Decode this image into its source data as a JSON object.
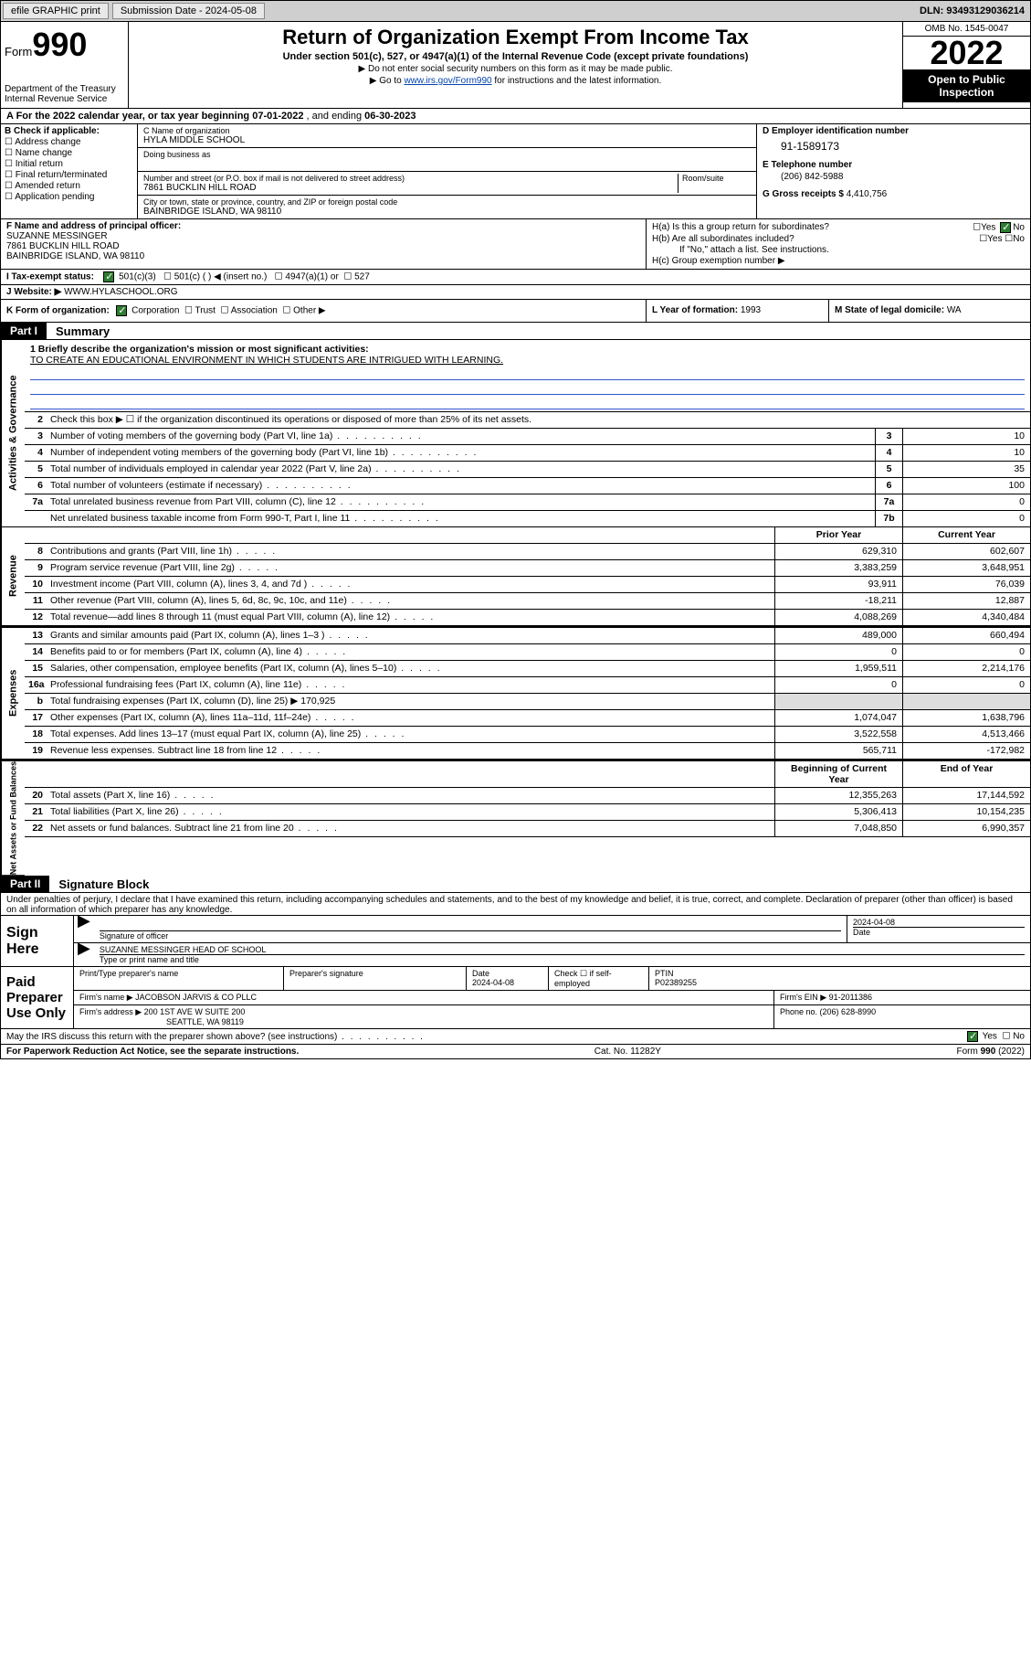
{
  "topbar": {
    "efile": "efile GRAPHIC print",
    "subdate_label": "Submission Date - ",
    "subdate": "2024-05-08",
    "dln_label": "DLN: ",
    "dln": "93493129036214"
  },
  "header": {
    "form_prefix": "Form",
    "form_no": "990",
    "dept": "Department of the Treasury",
    "irs": "Internal Revenue Service",
    "title": "Return of Organization Exempt From Income Tax",
    "sub": "Under section 501(c), 527, or 4947(a)(1) of the Internal Revenue Code (except private foundations)",
    "note1": "▶ Do not enter social security numbers on this form as it may be made public.",
    "note2_a": "▶ Go to ",
    "note2_link": "www.irs.gov/Form990",
    "note2_b": " for instructions and the latest information.",
    "omb": "OMB No. 1545-0047",
    "year": "2022",
    "openpub": "Open to Public Inspection"
  },
  "rowA": {
    "text_a": "A For the 2022 calendar year, or tax year beginning ",
    "begin": "07-01-2022",
    "text_b": " , and ending ",
    "end": "06-30-2023"
  },
  "colB": {
    "label": "B Check if applicable:",
    "opts": [
      "Address change",
      "Name change",
      "Initial return",
      "Final return/terminated",
      "Amended return",
      "Application pending"
    ]
  },
  "colC": {
    "name_cap": "C Name of organization",
    "name": "HYLA MIDDLE SCHOOL",
    "dba_cap": "Doing business as",
    "addr_cap": "Number and street (or P.O. box if mail is not delivered to street address)",
    "room_cap": "Room/suite",
    "addr": "7861 BUCKLIN HILL ROAD",
    "city_cap": "City or town, state or province, country, and ZIP or foreign postal code",
    "city": "BAINBRIDGE ISLAND, WA  98110"
  },
  "colDE": {
    "d_cap": "D Employer identification number",
    "ein": "91-1589173",
    "e_cap": "E Telephone number",
    "phone": "(206) 842-5988",
    "g_cap": "G Gross receipts $ ",
    "gross": "4,410,756"
  },
  "colF": {
    "cap": "F Name and address of principal officer:",
    "name": "SUZANNE MESSINGER",
    "addr1": "7861 BUCKLIN HILL ROAD",
    "addr2": "BAINBRIDGE ISLAND, WA  98110"
  },
  "colH": {
    "a": "H(a)  Is this a group return for subordinates?",
    "a_ans": "No",
    "b": "H(b)  Are all subordinates included?",
    "b_note": "If \"No,\" attach a list. See instructions.",
    "c": "H(c)  Group exemption number ▶"
  },
  "rowI": {
    "label": "I   Tax-exempt status:",
    "o1": "501(c)(3)",
    "o2": "501(c) (  ) ◀ (insert no.)",
    "o3": "4947(a)(1) or",
    "o4": "527"
  },
  "rowJ": {
    "label": "J   Website: ▶ ",
    "val": "WWW.HYLASCHOOL.ORG"
  },
  "rowK": {
    "label": "K Form of organization:",
    "opts": [
      "Corporation",
      "Trust",
      "Association",
      "Other ▶"
    ]
  },
  "rowL": {
    "label": "L Year of formation: ",
    "val": "1993"
  },
  "rowM": {
    "label": "M State of legal domicile: ",
    "val": "WA"
  },
  "partI": {
    "tag": "Part I",
    "title": "Summary"
  },
  "mission": {
    "q": "1   Briefly describe the organization's mission or most significant activities:",
    "a": "TO CREATE AN EDUCATIONAL ENVIRONMENT IN WHICH STUDENTS ARE INTRIGUED WITH LEARNING."
  },
  "gov": {
    "label": "Activities & Governance",
    "r2": "Check this box ▶ ☐  if the organization discontinued its operations or disposed of more than 25% of its net assets.",
    "rows": [
      {
        "n": "3",
        "d": "Number of voting members of the governing body (Part VI, line 1a)",
        "b": "3",
        "v": "10"
      },
      {
        "n": "4",
        "d": "Number of independent voting members of the governing body (Part VI, line 1b)",
        "b": "4",
        "v": "10"
      },
      {
        "n": "5",
        "d": "Total number of individuals employed in calendar year 2022 (Part V, line 2a)",
        "b": "5",
        "v": "35"
      },
      {
        "n": "6",
        "d": "Total number of volunteers (estimate if necessary)",
        "b": "6",
        "v": "100"
      },
      {
        "n": "7a",
        "d": "Total unrelated business revenue from Part VIII, column (C), line 12",
        "b": "7a",
        "v": "0"
      },
      {
        "n": "",
        "d": "Net unrelated business taxable income from Form 990-T, Part I, line 11",
        "b": "7b",
        "v": "0"
      }
    ]
  },
  "revhdr": {
    "py": "Prior Year",
    "cy": "Current Year"
  },
  "rev": {
    "label": "Revenue",
    "rows": [
      {
        "n": "8",
        "d": "Contributions and grants (Part VIII, line 1h)",
        "py": "629,310",
        "cy": "602,607"
      },
      {
        "n": "9",
        "d": "Program service revenue (Part VIII, line 2g)",
        "py": "3,383,259",
        "cy": "3,648,951"
      },
      {
        "n": "10",
        "d": "Investment income (Part VIII, column (A), lines 3, 4, and 7d )",
        "py": "93,911",
        "cy": "76,039"
      },
      {
        "n": "11",
        "d": "Other revenue (Part VIII, column (A), lines 5, 6d, 8c, 9c, 10c, and 11e)",
        "py": "-18,211",
        "cy": "12,887"
      },
      {
        "n": "12",
        "d": "Total revenue—add lines 8 through 11 (must equal Part VIII, column (A), line 12)",
        "py": "4,088,269",
        "cy": "4,340,484"
      }
    ]
  },
  "exp": {
    "label": "Expenses",
    "rows": [
      {
        "n": "13",
        "d": "Grants and similar amounts paid (Part IX, column (A), lines 1–3 )",
        "py": "489,000",
        "cy": "660,494"
      },
      {
        "n": "14",
        "d": "Benefits paid to or for members (Part IX, column (A), line 4)",
        "py": "0",
        "cy": "0"
      },
      {
        "n": "15",
        "d": "Salaries, other compensation, employee benefits (Part IX, column (A), lines 5–10)",
        "py": "1,959,511",
        "cy": "2,214,176"
      },
      {
        "n": "16a",
        "d": "Professional fundraising fees (Part IX, column (A), line 11e)",
        "py": "0",
        "cy": "0"
      }
    ],
    "r16b_n": "b",
    "r16b": "Total fundraising expenses (Part IX, column (D), line 25) ▶",
    "r16b_v": "170,925",
    "rows2": [
      {
        "n": "17",
        "d": "Other expenses (Part IX, column (A), lines 11a–11d, 11f–24e)",
        "py": "1,074,047",
        "cy": "1,638,796"
      },
      {
        "n": "18",
        "d": "Total expenses. Add lines 13–17 (must equal Part IX, column (A), line 25)",
        "py": "3,522,558",
        "cy": "4,513,466"
      },
      {
        "n": "19",
        "d": "Revenue less expenses. Subtract line 18 from line 12",
        "py": "565,711",
        "cy": "-172,982"
      }
    ]
  },
  "nethdr": {
    "py": "Beginning of Current Year",
    "cy": "End of Year"
  },
  "net": {
    "label": "Net Assets or Fund Balances",
    "rows": [
      {
        "n": "20",
        "d": "Total assets (Part X, line 16)",
        "py": "12,355,263",
        "cy": "17,144,592"
      },
      {
        "n": "21",
        "d": "Total liabilities (Part X, line 26)",
        "py": "5,306,413",
        "cy": "10,154,235"
      },
      {
        "n": "22",
        "d": "Net assets or fund balances. Subtract line 21 from line 20",
        "py": "7,048,850",
        "cy": "6,990,357"
      }
    ]
  },
  "partII": {
    "tag": "Part II",
    "title": "Signature Block"
  },
  "sigtext": "Under penalties of perjury, I declare that I have examined this return, including accompanying schedules and statements, and to the best of my knowledge and belief, it is true, correct, and complete. Declaration of preparer (other than officer) is based on all information of which preparer has any knowledge.",
  "sign": {
    "label": "Sign Here",
    "sig_cap": "Signature of officer",
    "date": "2024-04-08",
    "date_cap": "Date",
    "name": "SUZANNE MESSINGER HEAD OF SCHOOL",
    "name_cap": "Type or print name and title"
  },
  "paid": {
    "label": "Paid Preparer Use Only",
    "h1": "Print/Type preparer's name",
    "h2": "Preparer's signature",
    "h3": "Date",
    "h3v": "2024-04-08",
    "h4": "Check ☐ if self-employed",
    "h5": "PTIN",
    "h5v": "P02389255",
    "firm_cap": "Firm's name    ▶ ",
    "firm": "JACOBSON JARVIS & CO PLLC",
    "ein_cap": "Firm's EIN ▶ ",
    "ein": "91-2011386",
    "addr_cap": "Firm's address ▶ ",
    "addr1": "200 1ST AVE W SUITE 200",
    "addr2": "SEATTLE, WA  98119",
    "ph_cap": "Phone no. ",
    "ph": "(206) 628-8990"
  },
  "may": {
    "q": "May the IRS discuss this return with the preparer shown above? (see instructions)",
    "yes": "Yes",
    "no": "No"
  },
  "footer": {
    "left": "For Paperwork Reduction Act Notice, see the separate instructions.",
    "mid": "Cat. No. 11282Y",
    "right": "Form 990 (2022)"
  }
}
